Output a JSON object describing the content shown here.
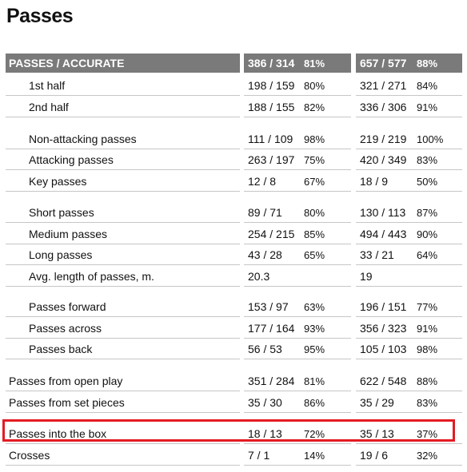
{
  "title": "Passes",
  "header": {
    "label": "PASSES / ACCURATE",
    "t1_val": "386 / 314",
    "t1_pct": "81%",
    "t2_val": "657 / 577",
    "t2_pct": "88%"
  },
  "rows": [
    {
      "label": "1st half",
      "t1_val": "198 / 159",
      "t1_pct": "80%",
      "t2_val": "321 / 271",
      "t2_pct": "84%"
    },
    {
      "label": "2nd half",
      "t1_val": "188 / 155",
      "t1_pct": "82%",
      "t2_val": "336 / 306",
      "t2_pct": "91%"
    },
    {
      "label": "Non-attacking passes",
      "t1_val": "111 / 109",
      "t1_pct": "98%",
      "t2_val": "219 / 219",
      "t2_pct": "100%"
    },
    {
      "label": "Attacking passes",
      "t1_val": "263 / 197",
      "t1_pct": "75%",
      "t2_val": "420 / 349",
      "t2_pct": "83%"
    },
    {
      "label": "Key passes",
      "t1_val": "12 / 8",
      "t1_pct": "67%",
      "t2_val": "18 / 9",
      "t2_pct": "50%"
    },
    {
      "label": "Short passes",
      "t1_val": "89 / 71",
      "t1_pct": "80%",
      "t2_val": "130 / 113",
      "t2_pct": "87%"
    },
    {
      "label": "Medium passes",
      "t1_val": "254 / 215",
      "t1_pct": "85%",
      "t2_val": "494 / 443",
      "t2_pct": "90%"
    },
    {
      "label": "Long passes",
      "t1_val": "43 / 28",
      "t1_pct": "65%",
      "t2_val": "33 / 21",
      "t2_pct": "64%"
    },
    {
      "label": "Avg. length of passes, m.",
      "t1_val": "20.3",
      "t1_pct": "",
      "t2_val": "19",
      "t2_pct": ""
    },
    {
      "label": "Passes forward",
      "t1_val": "153 / 97",
      "t1_pct": "63%",
      "t2_val": "196 / 151",
      "t2_pct": "77%"
    },
    {
      "label": "Passes across",
      "t1_val": "177 / 164",
      "t1_pct": "93%",
      "t2_val": "356 / 323",
      "t2_pct": "91%"
    },
    {
      "label": "Passes back",
      "t1_val": "56 / 53",
      "t1_pct": "95%",
      "t2_val": "105 / 103",
      "t2_pct": "98%"
    },
    {
      "label": "Passes from open play",
      "t1_val": "351 / 284",
      "t1_pct": "81%",
      "t2_val": "622 / 548",
      "t2_pct": "88%"
    },
    {
      "label": "Passes from set pieces",
      "t1_val": "35 / 30",
      "t1_pct": "86%",
      "t2_val": "35 / 29",
      "t2_pct": "83%"
    },
    {
      "label": "Passes into the box",
      "t1_val": "18 / 13",
      "t1_pct": "72%",
      "t2_val": "35 / 13",
      "t2_pct": "37%"
    },
    {
      "label": "Crosses",
      "t1_val": "7 / 1",
      "t1_pct": "14%",
      "t2_val": "19 / 6",
      "t2_pct": "32%"
    }
  ],
  "colors": {
    "header_bg": "#7a7a7a",
    "highlight": "#e31b23",
    "rule": "#c6c6c6"
  }
}
